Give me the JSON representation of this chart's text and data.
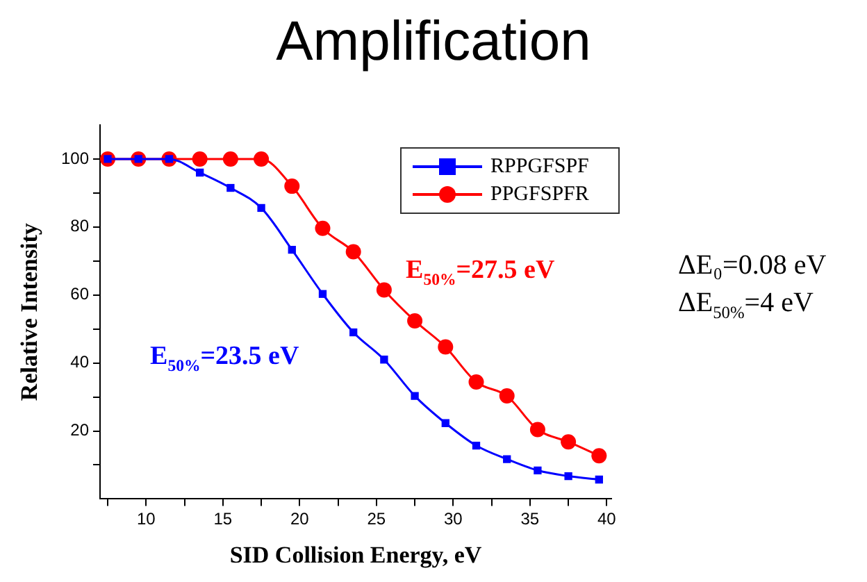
{
  "chart_data": {
    "type": "line",
    "title": "Amplification",
    "xlabel": "SID Collision Energy, eV",
    "ylabel": "Relative Intensity",
    "x": [
      7.5,
      9.5,
      11.5,
      13.5,
      15.5,
      17.5,
      19.5,
      21.5,
      23.5,
      25.5,
      27.5,
      29.5,
      31.5,
      33.5,
      35.5,
      37.5,
      39.5
    ],
    "series": [
      {
        "name": "RPPGFSPF",
        "color": "#0000ff",
        "marker": "square",
        "values": [
          100,
          100,
          100,
          96,
          91.5,
          85.6,
          73.3,
          60.3,
          49,
          41,
          30.3,
          22.3,
          15.7,
          11.7,
          8.4,
          6.7,
          5.7
        ]
      },
      {
        "name": "PPGFSPFR",
        "color": "#ff0000",
        "marker": "circle",
        "values": [
          100,
          100,
          100,
          100,
          100,
          100,
          92,
          79.6,
          72.7,
          61.5,
          52.4,
          44.7,
          34.4,
          30.3,
          20.4,
          16.8,
          12.7
        ]
      }
    ],
    "xlim": [
      7,
      40.3
    ],
    "xticks": [
      {
        "value": 7.5,
        "label": null
      },
      10,
      {
        "value": 12.5,
        "label": null
      },
      15,
      {
        "value": 17.5,
        "label": null
      },
      20,
      {
        "value": 22.5,
        "label": null
      },
      25,
      {
        "value": 27.5,
        "label": null
      },
      30,
      {
        "value": 32.5,
        "label": null
      },
      35,
      {
        "value": 37.5,
        "label": null
      },
      40
    ],
    "ylim": [
      0,
      110
    ],
    "yticks": [
      {
        "value": 10,
        "label": null
      },
      20,
      {
        "value": 30,
        "label": null
      },
      40,
      {
        "value": 50,
        "label": null
      },
      60,
      {
        "value": 70,
        "label": null
      },
      80,
      {
        "value": 90,
        "label": null
      },
      100
    ],
    "grid": false,
    "legend": "top right",
    "line_style": "solid",
    "annotations": [
      "E$_{50%}$=23.5 eV",
      "E$_{50%}$=27.5 eV",
      "ΔE₀=0.08 eV",
      "ΔE$_{50%}$=4 eV"
    ]
  }
}
